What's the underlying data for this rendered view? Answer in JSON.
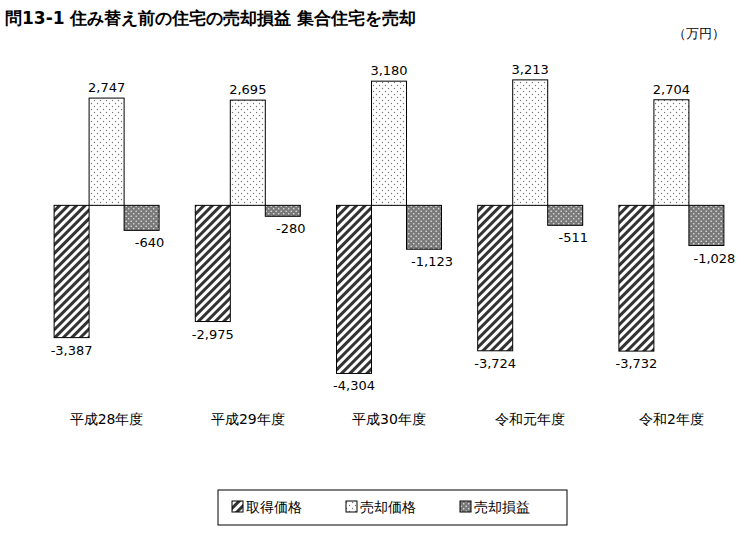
{
  "chart_data": {
    "type": "bar",
    "title": "問13-1 住み替え前の住宅の売却損益 集合住宅を売却",
    "subtitle": "（万円）",
    "categories": [
      "平成28年度",
      "平成29年度",
      "平成30年度",
      "令和元年度",
      "令和2年度"
    ],
    "series": [
      {
        "name": "取得価格",
        "color": "#333333",
        "values": [
          -3387,
          -2975,
          -4304,
          -3724,
          -3732
        ],
        "value_labels": [
          "-3,387",
          "-2,975",
          "-4,304",
          "-3,724",
          "-3,732"
        ]
      },
      {
        "name": "売却価格",
        "color": "#ffffff",
        "values": [
          2747,
          2695,
          3180,
          3213,
          2704
        ],
        "value_labels": [
          "2,747",
          "2,695",
          "3,180",
          "3,213",
          "2,704"
        ]
      },
      {
        "name": "売却損益",
        "color": "#7a7a7a",
        "values": [
          -640,
          -280,
          -1123,
          -511,
          -1028
        ],
        "value_labels": [
          "-640",
          "-280",
          "-1,123",
          "-511",
          "-1,028"
        ]
      }
    ],
    "ylim": [
      -4600,
      3850
    ],
    "tick_labels": false,
    "grid": false,
    "data_labels": true,
    "legend": "bottom"
  }
}
